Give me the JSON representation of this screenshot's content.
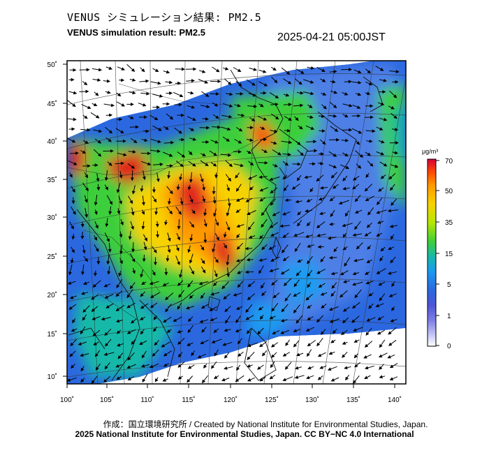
{
  "title_jp": "VENUS シミュレーション結果: PM2.5",
  "title_en": "VENUS simulation result: PM2.5",
  "timestamp": "2025-04-21 05:00JST",
  "axes": {
    "lat_labels": [
      "50˚",
      "45˚",
      "40˚",
      "35˚",
      "30˚",
      "25˚",
      "20˚",
      "15˚",
      "10˚"
    ],
    "lon_labels": [
      "100˚",
      "105˚",
      "110˚",
      "115˚",
      "120˚",
      "125˚",
      "130˚",
      "135˚",
      "140˚"
    ]
  },
  "colorbar": {
    "unit": "μg/m³",
    "tick_labels": [
      "70",
      "50",
      "35",
      "15",
      "5",
      "1",
      "0"
    ],
    "colors": [
      "#d7003a",
      "#ff4a00",
      "#ff9a00",
      "#f7d200",
      "#b7e600",
      "#3ecf3a",
      "#17b9a8",
      "#1a9bf0",
      "#2b68e0",
      "#4e55d6",
      "#7c7de6",
      "#c6c6f5",
      "#ffffff"
    ]
  },
  "credit": {
    "line1": "作成：国立環境研究所 / Created by National Institute for Environmental Studies, Japan.",
    "line2": "2025 National Institute for Environmental Studies, Japan. CC BY−NC 4.0 International"
  },
  "map_colors": {
    "low": "#2b68e0",
    "light": "#7c9cf0",
    "mid": "#1a9bf0",
    "cyan": "#17b9a8",
    "green": "#3ecf3a",
    "yellow": "#f7d200",
    "orange": "#ff9a00",
    "red": "#e0201a"
  }
}
